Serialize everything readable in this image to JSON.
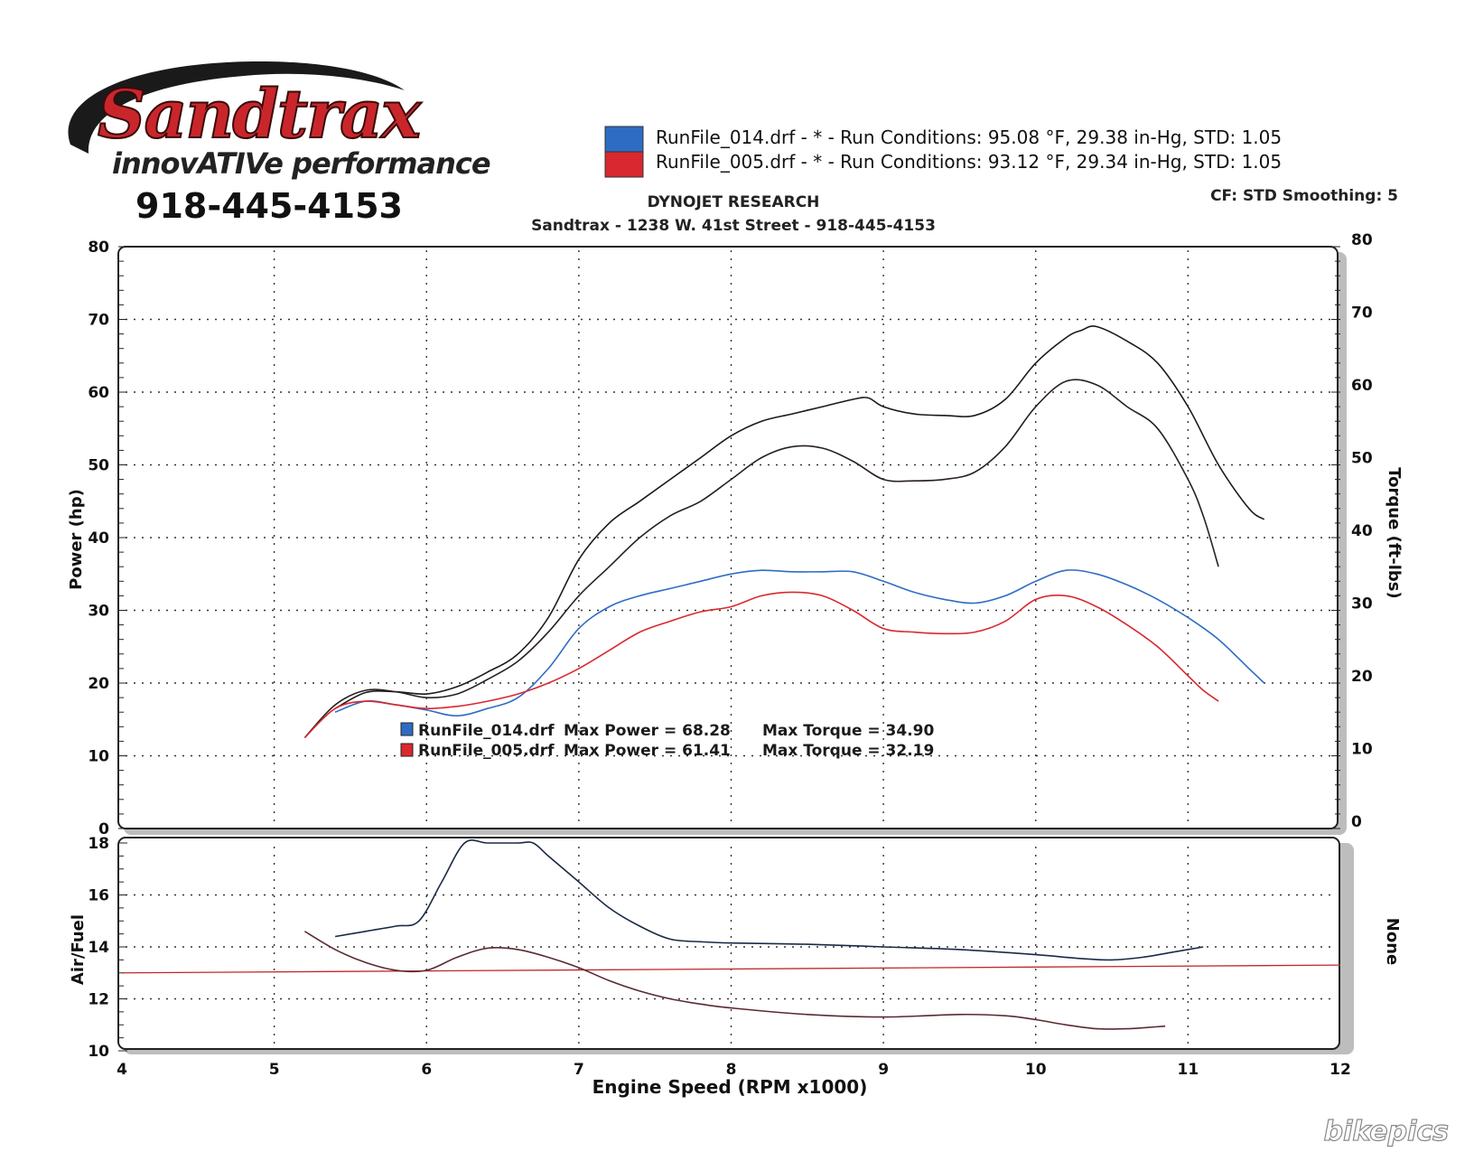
{
  "header": {
    "logo_main": "Sandtrax",
    "logo_sub": "innovATIVe performance",
    "phone": "918-445-4153",
    "company": "DYNOJET RESEARCH",
    "address": "Sandtrax - 1238 W. 41st Street - 918-445-4153",
    "cf_smoothing": "CF: STD  Smoothing: 5",
    "watermark": "bikepics"
  },
  "runs": [
    {
      "label": "RunFile_014.drf - *  -  Run Conditions: 95.08 °F, 29.38 in-Hg, STD: 1.05",
      "color": "#2e6cc4"
    },
    {
      "label": "RunFile_005.drf - *  -  Run Conditions: 93.12 °F, 29.34 in-Hg, STD: 1.05",
      "color": "#d9282f"
    }
  ],
  "summary": [
    {
      "file": "RunFile_014.drf",
      "power": "Max Power = 68.28",
      "torque": "Max Torque = 34.90",
      "color": "#2e6cc4"
    },
    {
      "file": "RunFile_005.drf",
      "power": "Max Power = 61.41",
      "torque": "Max Torque = 32.19",
      "color": "#d9282f"
    }
  ],
  "chart_data": [
    {
      "type": "line",
      "xlabel": "Engine Speed (RPM x1000)",
      "ylabel": "Power (hp)",
      "ylabel_right": "Torque (ft-lbs)",
      "xlim": [
        4,
        12
      ],
      "ylim": [
        0,
        80
      ],
      "ylim_right": [
        0,
        80
      ],
      "x_ticks": [
        "4",
        "5",
        "6",
        "7",
        "8",
        "9",
        "10",
        "11",
        "12"
      ],
      "y_ticks": [
        "0",
        "10",
        "20",
        "30",
        "40",
        "50",
        "60",
        "70",
        "80"
      ],
      "y_ticks_right": [
        "0",
        "10",
        "20",
        "30",
        "40",
        "50",
        "60",
        "70",
        "80"
      ],
      "grid": true,
      "series": [
        {
          "name": "RunFile_014.drf",
          "measure": "power",
          "color": "#1a1a1a",
          "x": [
            5.4,
            5.6,
            5.8,
            6.0,
            6.2,
            6.4,
            6.6,
            6.8,
            7.0,
            7.2,
            7.4,
            7.6,
            7.8,
            8.0,
            8.2,
            8.4,
            8.6,
            8.8,
            8.9,
            9.0,
            9.2,
            9.4,
            9.6,
            9.8,
            10.0,
            10.2,
            10.3,
            10.4,
            10.6,
            10.8,
            11.0,
            11.2,
            11.4,
            11.5
          ],
          "y": [
            16.5,
            18.7,
            18.8,
            18.5,
            19.5,
            21.5,
            24,
            29,
            37,
            42,
            45,
            48,
            51,
            54,
            56,
            57,
            58,
            59,
            59.2,
            58,
            57,
            56.8,
            56.8,
            59,
            64,
            67.5,
            68.5,
            69,
            67,
            64,
            58,
            50,
            44,
            42.5
          ]
        },
        {
          "name": "RunFile_005.drf",
          "measure": "power",
          "color": "#2a2020",
          "x": [
            5.2,
            5.4,
            5.6,
            5.8,
            6.0,
            6.2,
            6.4,
            6.6,
            6.8,
            7.0,
            7.2,
            7.4,
            7.6,
            7.8,
            8.0,
            8.2,
            8.4,
            8.6,
            8.8,
            9.0,
            9.2,
            9.4,
            9.6,
            9.8,
            10.0,
            10.2,
            10.4,
            10.6,
            10.8,
            11.0,
            11.1,
            11.2
          ],
          "y": [
            12.5,
            17,
            19,
            18.8,
            18,
            18.5,
            20.5,
            23,
            27,
            32,
            36,
            40,
            43,
            45,
            48,
            51,
            52.5,
            52.3,
            50.5,
            48,
            47.8,
            48,
            49,
            52.5,
            58,
            61.5,
            61,
            58,
            55,
            48,
            43,
            36
          ]
        },
        {
          "name": "RunFile_014.drf",
          "measure": "torque",
          "color": "#2e6cc4",
          "x": [
            5.4,
            5.6,
            5.8,
            6.0,
            6.2,
            6.4,
            6.6,
            6.8,
            7.0,
            7.2,
            7.4,
            7.6,
            7.8,
            8.0,
            8.2,
            8.4,
            8.6,
            8.8,
            9.0,
            9.2,
            9.4,
            9.6,
            9.8,
            10.0,
            10.2,
            10.4,
            10.6,
            10.8,
            11.0,
            11.2,
            11.4,
            11.5
          ],
          "y": [
            16,
            17.5,
            17,
            16.3,
            15.5,
            16.5,
            18,
            22,
            27.5,
            30.5,
            32,
            33,
            34,
            35,
            35.5,
            35.3,
            35.3,
            35.3,
            34,
            32.5,
            31.5,
            31,
            32,
            34,
            35.5,
            35,
            33.5,
            31.5,
            29,
            26,
            22,
            20
          ]
        },
        {
          "name": "RunFile_005.drf",
          "measure": "torque",
          "color": "#d9282f",
          "x": [
            5.2,
            5.4,
            5.6,
            5.8,
            6.0,
            6.2,
            6.4,
            6.6,
            6.8,
            7.0,
            7.2,
            7.4,
            7.6,
            7.8,
            8.0,
            8.2,
            8.4,
            8.6,
            8.8,
            9.0,
            9.2,
            9.4,
            9.6,
            9.8,
            10.0,
            10.2,
            10.4,
            10.6,
            10.8,
            11.0,
            11.1,
            11.2
          ],
          "y": [
            12.5,
            16.5,
            17.5,
            17,
            16.5,
            16.8,
            17.5,
            18.5,
            20,
            22,
            24.5,
            27,
            28.5,
            29.8,
            30.5,
            32,
            32.5,
            32,
            30,
            27.5,
            27,
            26.8,
            27,
            28.5,
            31.5,
            32,
            30.5,
            28,
            25,
            21,
            19,
            17.5
          ]
        }
      ]
    },
    {
      "type": "line",
      "xlabel": "Engine Speed (RPM x1000)",
      "ylabel": "Air/Fuel",
      "ylabel_right": "None",
      "xlim": [
        4,
        12
      ],
      "ylim": [
        10,
        18
      ],
      "x_ticks": [
        "4",
        "5",
        "6",
        "7",
        "8",
        "9",
        "10",
        "11",
        "12"
      ],
      "y_ticks": [
        "10",
        "12",
        "14",
        "16",
        "18"
      ],
      "grid": true,
      "reference_line": {
        "y": [
          13.0,
          13.3
        ],
        "color": "#c0282d"
      },
      "series": [
        {
          "name": "RunFile_014.drf",
          "color": "#1a2a44",
          "x": [
            5.4,
            5.6,
            5.8,
            5.95,
            6.1,
            6.25,
            6.4,
            6.6,
            6.7,
            6.8,
            7.0,
            7.2,
            7.4,
            7.6,
            7.8,
            8.0,
            8.5,
            9.0,
            9.5,
            10.0,
            10.3,
            10.5,
            10.7,
            10.9,
            11.1
          ],
          "y": [
            14.4,
            14.6,
            14.8,
            15.0,
            16.5,
            18.2,
            18.5,
            18.2,
            18.0,
            17.5,
            16.5,
            15.5,
            14.8,
            14.3,
            14.2,
            14.15,
            14.1,
            14.0,
            13.9,
            13.7,
            13.55,
            13.5,
            13.6,
            13.8,
            14.0
          ]
        },
        {
          "name": "RunFile_005.drf",
          "color": "#5a2a30",
          "x": [
            5.2,
            5.4,
            5.6,
            5.8,
            6.0,
            6.2,
            6.4,
            6.6,
            6.8,
            7.0,
            7.2,
            7.4,
            7.6,
            7.8,
            8.0,
            8.5,
            9.0,
            9.5,
            9.8,
            10.0,
            10.2,
            10.4,
            10.6,
            10.85
          ],
          "y": [
            14.6,
            13.9,
            13.4,
            13.1,
            13.1,
            13.6,
            13.95,
            13.9,
            13.6,
            13.2,
            12.7,
            12.3,
            12.0,
            11.8,
            11.65,
            11.4,
            11.3,
            11.4,
            11.35,
            11.2,
            11.0,
            10.85,
            10.85,
            10.95
          ]
        }
      ]
    }
  ]
}
